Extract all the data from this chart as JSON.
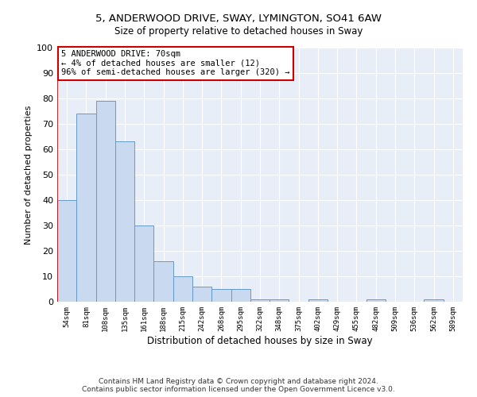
{
  "title1": "5, ANDERWOOD DRIVE, SWAY, LYMINGTON, SO41 6AW",
  "title2": "Size of property relative to detached houses in Sway",
  "xlabel": "Distribution of detached houses by size in Sway",
  "ylabel": "Number of detached properties",
  "footnote1": "Contains HM Land Registry data © Crown copyright and database right 2024.",
  "footnote2": "Contains public sector information licensed under the Open Government Licence v3.0.",
  "annotation_line1": "5 ANDERWOOD DRIVE: 70sqm",
  "annotation_line2": "← 4% of detached houses are smaller (12)",
  "annotation_line3": "96% of semi-detached houses are larger (320) →",
  "bar_labels": [
    "54sqm",
    "81sqm",
    "108sqm",
    "135sqm",
    "161sqm",
    "188sqm",
    "215sqm",
    "242sqm",
    "268sqm",
    "295sqm",
    "322sqm",
    "348sqm",
    "375sqm",
    "402sqm",
    "429sqm",
    "455sqm",
    "482sqm",
    "509sqm",
    "536sqm",
    "562sqm",
    "589sqm"
  ],
  "bar_values": [
    40,
    74,
    79,
    63,
    30,
    16,
    10,
    6,
    5,
    5,
    1,
    1,
    0,
    1,
    0,
    0,
    1,
    0,
    0,
    1,
    0
  ],
  "bar_color": "#c9d9f0",
  "bar_edge_color": "#6699cc",
  "highlight_color": "#cc0000",
  "ylim": [
    0,
    100
  ],
  "yticks": [
    0,
    10,
    20,
    30,
    40,
    50,
    60,
    70,
    80,
    90,
    100
  ],
  "plot_bg_color": "#e8eef8",
  "grid_color": "#ffffff",
  "annotation_box_color": "#cc0000",
  "title1_fontsize": 9.5,
  "title2_fontsize": 8.5,
  "footnote_fontsize": 6.5
}
